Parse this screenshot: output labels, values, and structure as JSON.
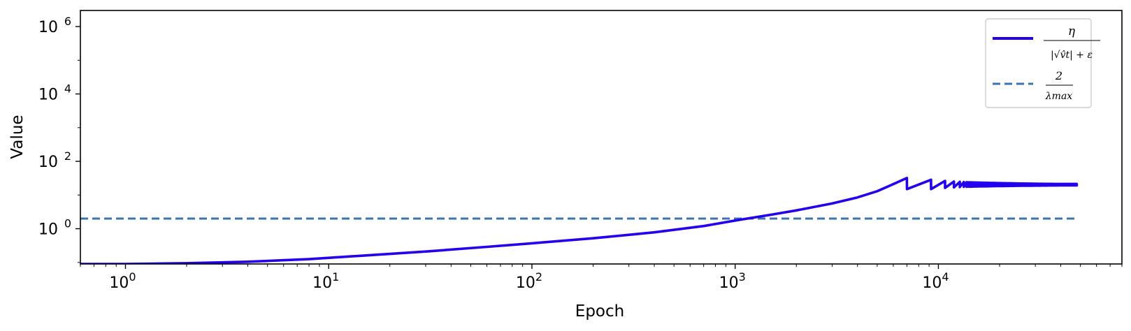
{
  "chart_data": {
    "type": "line",
    "xlabel": "Epoch",
    "ylabel": "Value",
    "x_scale": "log",
    "y_scale": "log",
    "xlim": [
      0.6,
      80000
    ],
    "ylim": [
      0.09,
      3000000
    ],
    "x_ticks": [
      {
        "value": 1,
        "base": "10",
        "exp": "0"
      },
      {
        "value": 10,
        "base": "10",
        "exp": "1"
      },
      {
        "value": 100,
        "base": "10",
        "exp": "2"
      },
      {
        "value": 1000,
        "base": "10",
        "exp": "3"
      },
      {
        "value": 10000,
        "base": "10",
        "exp": "4"
      }
    ],
    "y_ticks": [
      {
        "value": 1,
        "base": "10",
        "exp": "0"
      },
      {
        "value": 100,
        "base": "10",
        "exp": "2"
      },
      {
        "value": 10000,
        "base": "10",
        "exp": "4"
      },
      {
        "value": 1000000,
        "base": "10",
        "exp": "6"
      }
    ],
    "grid": false,
    "legend_position": "top-right",
    "series": [
      {
        "name": "η / (|√v̂t| + ε)",
        "legend_numerator": "η",
        "legend_denominator": "|√v̂t| + ε",
        "style": "solid",
        "color": "#2200ee",
        "x": [
          0.6,
          1,
          2,
          4,
          8,
          15,
          30,
          60,
          100,
          200,
          400,
          700,
          1000,
          1500,
          2000,
          3000,
          4000,
          5000,
          6000,
          7000
        ],
        "y": [
          0.09,
          0.09,
          0.095,
          0.105,
          0.125,
          0.16,
          0.21,
          0.29,
          0.37,
          0.52,
          0.78,
          1.2,
          1.75,
          2.6,
          3.5,
          5.6,
          8.5,
          13,
          21,
          32
        ]
      },
      {
        "name": "2 / λmax",
        "legend_numerator": "2",
        "legend_denominator": "λmax",
        "style": "dashed",
        "color": "#3a72b4",
        "x": [
          0.6,
          48000
        ],
        "y": [
          2,
          2
        ]
      }
    ],
    "oscillation": {
      "start_epoch": 7000,
      "end_epoch": 48000,
      "high": 32,
      "low": 15,
      "level": 20
    }
  }
}
